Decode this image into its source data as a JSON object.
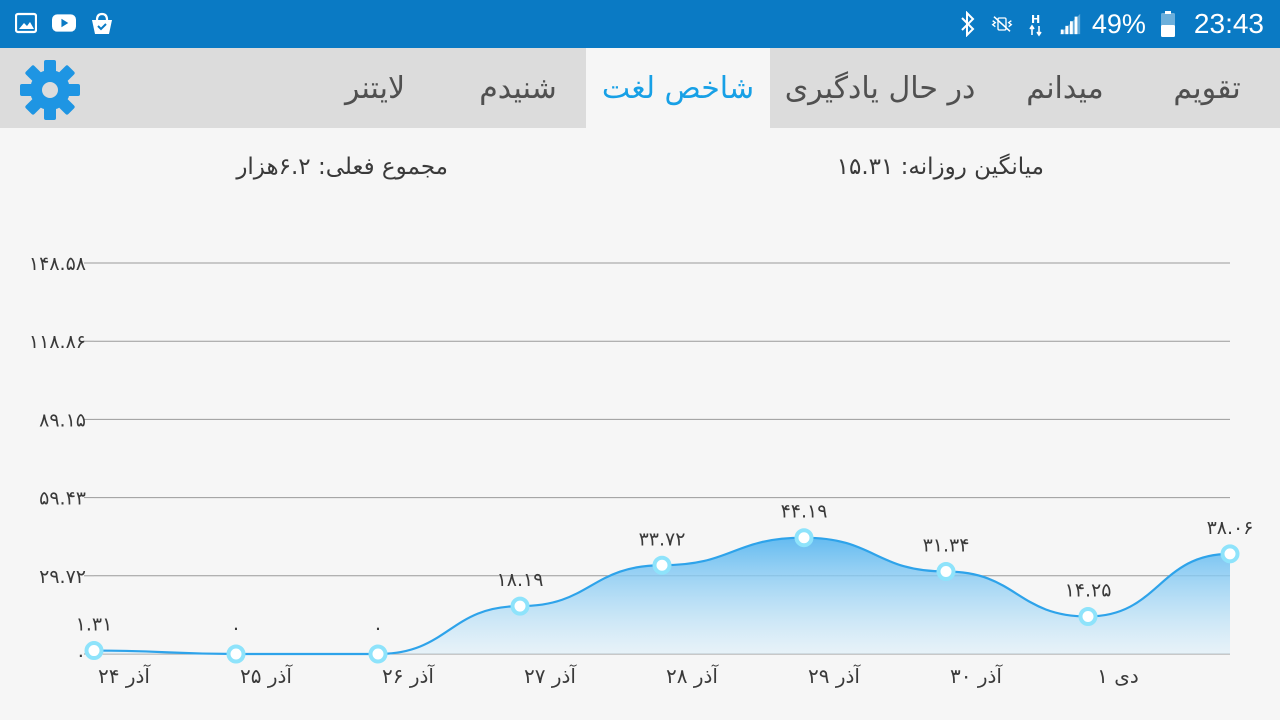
{
  "status_bar": {
    "left_icons": [
      "gallery-icon",
      "youtube-icon",
      "shopping-bag-icon"
    ],
    "right_icons": [
      "bluetooth-icon",
      "vibrate-mute-icon",
      "hspa-icon",
      "signal-icon"
    ],
    "battery": "49%",
    "time": "23:43"
  },
  "tabs": [
    {
      "label": "تقویم",
      "active": false
    },
    {
      "label": "میدانم",
      "active": false
    },
    {
      "label": "در حال یادگیری",
      "active": false
    },
    {
      "label": "شاخص لغت",
      "active": true
    },
    {
      "label": "شنیدم",
      "active": false
    },
    {
      "label": "لایتنر",
      "active": false
    }
  ],
  "settings_icon": "gear-icon",
  "summary": {
    "daily_average": "میانگین روزانه: ۱۵.۳۱",
    "total": "مجموع فعلی: ۶.۲هزار"
  },
  "colors": {
    "status_bar": "#0a7ac4",
    "tab_active_text": "#17a0e6",
    "line": "#2ea3ea",
    "point": "#8ee3fb"
  },
  "chart_data": {
    "type": "area",
    "x": [
      "۲۴ آذر",
      "۲۵ آذر",
      "۲۶ آذر",
      "۲۷ آذر",
      "۲۸ آذر",
      "۲۹ آذر",
      "۳۰ آذر",
      "۱ دی",
      ""
    ],
    "values": [
      1.31,
      0,
      0,
      18.19,
      33.72,
      44.19,
      31.34,
      14.25,
      38.06
    ],
    "value_labels": [
      "۱.۳۱",
      "۰",
      "۰",
      "۱۸.۱۹",
      "۳۳.۷۲",
      "۴۴.۱۹",
      "۳۱.۳۴",
      "۱۴.۲۵",
      "۳۸.۰۶"
    ],
    "y_ticks": [
      0,
      29.72,
      59.43,
      89.15,
      118.86,
      148.58
    ],
    "y_tick_labels": [
      "۰",
      "۲۹.۷۲",
      "۵۹.۴۳",
      "۸۹.۱۵",
      "۱۱۸.۸۶",
      "۱۴۸.۵۸"
    ],
    "ylim": [
      0,
      148.58
    ],
    "grid": true,
    "title": "",
    "xlabel": "",
    "ylabel": ""
  }
}
